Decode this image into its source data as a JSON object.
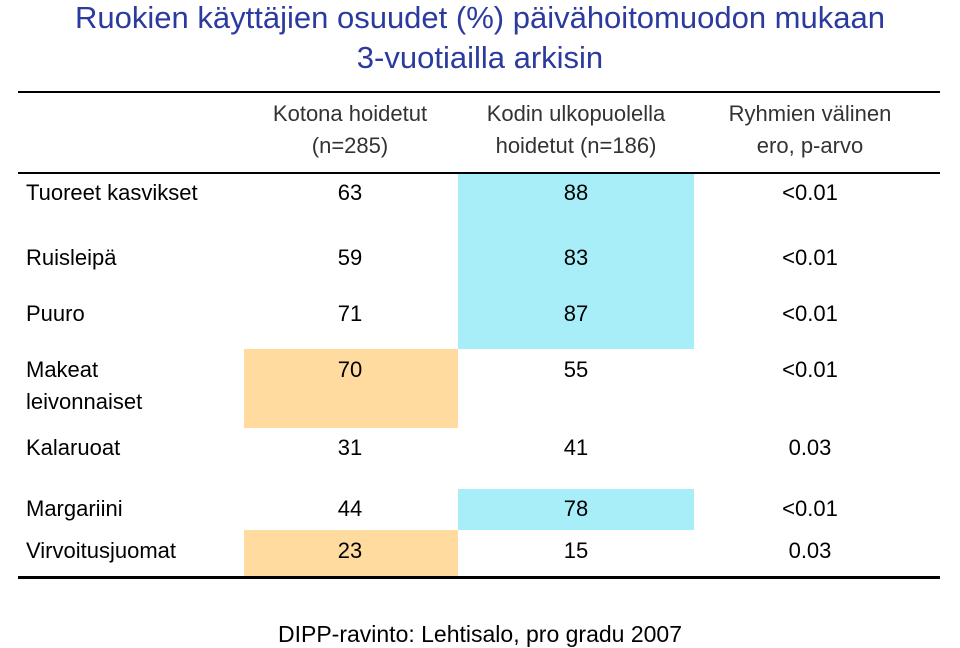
{
  "title": {
    "line1": "Ruokien käyttäjien osuudet (%) päivähoitomuodon mukaan",
    "line2": "3-vuotiailla arkisin"
  },
  "colors": {
    "title": "#2b3a9e",
    "highlight_blue": "#a8eef9",
    "highlight_orange": "#ffdba0"
  },
  "table": {
    "headers": [
      {
        "line1": "Kotona hoidetut",
        "line2": "(n=285)"
      },
      {
        "line1": "Kodin ulkopuolella",
        "line2": "hoidetut (n=186)"
      },
      {
        "line1": "Ryhmien välinen",
        "line2": "ero, p-arvo"
      }
    ],
    "rows": [
      {
        "label": "Tuoreet kasvikset",
        "home": "63",
        "outside": "88",
        "p": "<0.01",
        "highlight": "outside"
      },
      {
        "label": "Ruisleipä",
        "home": "59",
        "outside": "83",
        "p": "<0.01",
        "highlight": "outside"
      },
      {
        "label": "Puuro",
        "home": "71",
        "outside": "87",
        "p": "<0.01",
        "highlight": "outside"
      },
      {
        "label": "Makeat",
        "label2": "leivonnaiset",
        "home": "70",
        "outside": "55",
        "p": "<0.01",
        "highlight": "home"
      },
      {
        "label": "Kalaruoat",
        "home": "31",
        "outside": "41",
        "p": "0.03",
        "highlight": "none"
      },
      {
        "label": "Margariini",
        "home": "44",
        "outside": "78",
        "p": "<0.01",
        "highlight": "outside"
      },
      {
        "label": "Virvoitusjuomat",
        "home": "23",
        "outside": "15",
        "p": "0.03",
        "highlight": "home"
      }
    ]
  },
  "footer": "DIPP-ravinto: Lehtisalo, pro gradu 2007"
}
